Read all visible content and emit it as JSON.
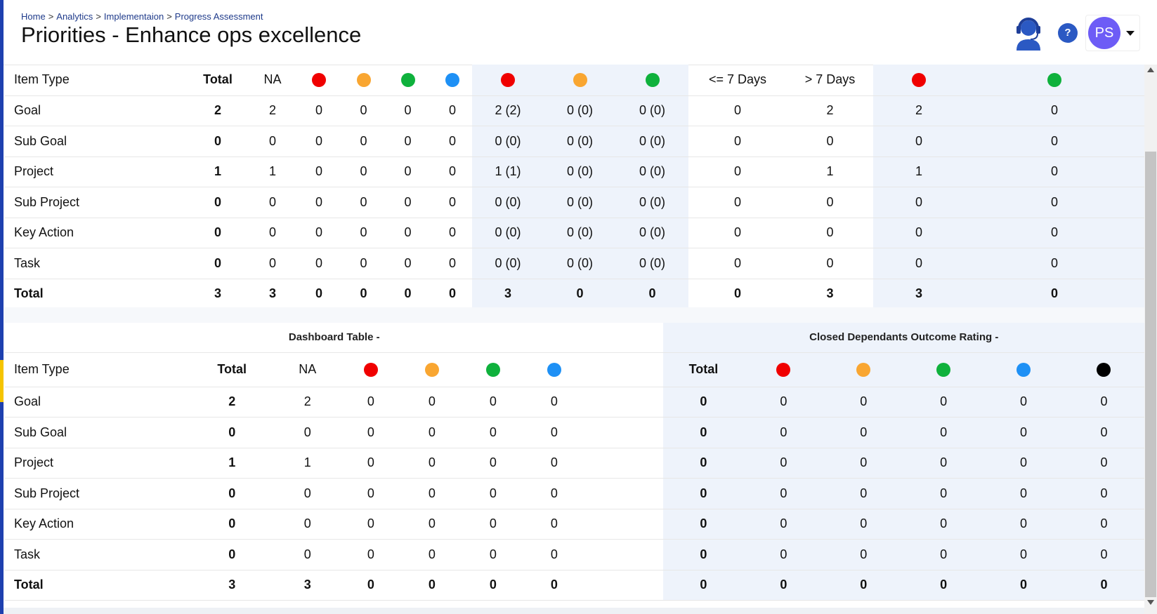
{
  "breadcrumb": [
    "Home",
    "Analytics",
    "Implementaion",
    "Progress Assessment"
  ],
  "title": "Priorities - Enhance ops excellence",
  "header": {
    "help_label": "?",
    "avatar_initials": "PS"
  },
  "colors": {
    "red": "#f00000",
    "amber": "#f9a631",
    "green": "#0fb13c",
    "blue": "#1e90f5",
    "black": "#000000",
    "accent": "#1e40af",
    "avatar": "#6d5cf6"
  },
  "table1": {
    "header": {
      "item_type": "Item Type",
      "total": "Total",
      "na": "NA",
      "dots_a": [
        "red",
        "amber",
        "green",
        "blue"
      ],
      "dots_b": [
        "red",
        "amber",
        "green"
      ],
      "le7": "<= 7 Days",
      "gt7": "> 7 Days",
      "dots_c": [
        "red",
        "green"
      ]
    },
    "rows": [
      {
        "type": "Goal",
        "total": "2",
        "na": "2",
        "a": [
          "0",
          "0",
          "0",
          "0"
        ],
        "b": [
          "2 (2)",
          "0 (0)",
          "0 (0)"
        ],
        "le7": "0",
        "gt7": "2",
        "c": [
          "2",
          "0"
        ]
      },
      {
        "type": "Sub Goal",
        "total": "0",
        "na": "0",
        "a": [
          "0",
          "0",
          "0",
          "0"
        ],
        "b": [
          "0 (0)",
          "0 (0)",
          "0 (0)"
        ],
        "le7": "0",
        "gt7": "0",
        "c": [
          "0",
          "0"
        ]
      },
      {
        "type": "Project",
        "total": "1",
        "na": "1",
        "a": [
          "0",
          "0",
          "0",
          "0"
        ],
        "b": [
          "1 (1)",
          "0 (0)",
          "0 (0)"
        ],
        "le7": "0",
        "gt7": "1",
        "c": [
          "1",
          "0"
        ]
      },
      {
        "type": "Sub Project",
        "total": "0",
        "na": "0",
        "a": [
          "0",
          "0",
          "0",
          "0"
        ],
        "b": [
          "0 (0)",
          "0 (0)",
          "0 (0)"
        ],
        "le7": "0",
        "gt7": "0",
        "c": [
          "0",
          "0"
        ]
      },
      {
        "type": "Key Action",
        "total": "0",
        "na": "0",
        "a": [
          "0",
          "0",
          "0",
          "0"
        ],
        "b": [
          "0 (0)",
          "0 (0)",
          "0 (0)"
        ],
        "le7": "0",
        "gt7": "0",
        "c": [
          "0",
          "0"
        ]
      },
      {
        "type": "Task",
        "total": "0",
        "na": "0",
        "a": [
          "0",
          "0",
          "0",
          "0"
        ],
        "b": [
          "0 (0)",
          "0 (0)",
          "0 (0)"
        ],
        "le7": "0",
        "gt7": "0",
        "c": [
          "0",
          "0"
        ]
      },
      {
        "type": "Total",
        "total": "3",
        "na": "3",
        "a": [
          "0",
          "0",
          "0",
          "0"
        ],
        "b": [
          "3",
          "0",
          "0"
        ],
        "le7": "0",
        "gt7": "3",
        "c": [
          "3",
          "0"
        ]
      }
    ]
  },
  "table2": {
    "section_left": "Dashboard Table -",
    "section_right": "Closed Dependants Outcome Rating -",
    "header": {
      "item_type": "Item Type",
      "total": "Total",
      "na": "NA",
      "dots_a": [
        "red",
        "amber",
        "green",
        "blue"
      ],
      "total_right": "Total",
      "dots_b": [
        "red",
        "amber",
        "green",
        "blue",
        "black"
      ]
    },
    "rows": [
      {
        "type": "Goal",
        "total": "2",
        "na": "2",
        "a": [
          "0",
          "0",
          "0",
          "0"
        ],
        "rtotal": "0",
        "b": [
          "0",
          "0",
          "0",
          "0",
          "0"
        ]
      },
      {
        "type": "Sub Goal",
        "total": "0",
        "na": "0",
        "a": [
          "0",
          "0",
          "0",
          "0"
        ],
        "rtotal": "0",
        "b": [
          "0",
          "0",
          "0",
          "0",
          "0"
        ]
      },
      {
        "type": "Project",
        "total": "1",
        "na": "1",
        "a": [
          "0",
          "0",
          "0",
          "0"
        ],
        "rtotal": "0",
        "b": [
          "0",
          "0",
          "0",
          "0",
          "0"
        ]
      },
      {
        "type": "Sub Project",
        "total": "0",
        "na": "0",
        "a": [
          "0",
          "0",
          "0",
          "0"
        ],
        "rtotal": "0",
        "b": [
          "0",
          "0",
          "0",
          "0",
          "0"
        ]
      },
      {
        "type": "Key Action",
        "total": "0",
        "na": "0",
        "a": [
          "0",
          "0",
          "0",
          "0"
        ],
        "rtotal": "0",
        "b": [
          "0",
          "0",
          "0",
          "0",
          "0"
        ]
      },
      {
        "type": "Task",
        "total": "0",
        "na": "0",
        "a": [
          "0",
          "0",
          "0",
          "0"
        ],
        "rtotal": "0",
        "b": [
          "0",
          "0",
          "0",
          "0",
          "0"
        ]
      },
      {
        "type": "Total",
        "total": "3",
        "na": "3",
        "a": [
          "0",
          "0",
          "0",
          "0"
        ],
        "rtotal": "0",
        "b": [
          "0",
          "0",
          "0",
          "0",
          "0"
        ]
      }
    ]
  }
}
